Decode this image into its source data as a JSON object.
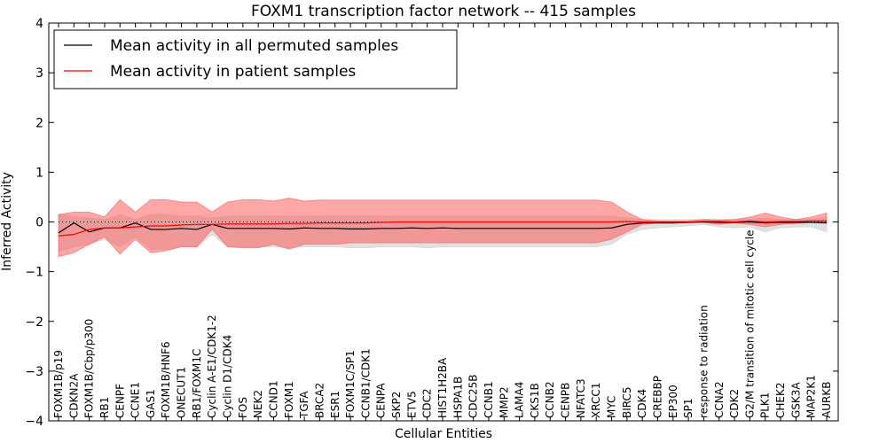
{
  "chart_data": {
    "type": "line",
    "title": "FOXM1 transcription factor network -- 415 samples",
    "xlabel": "Cellular Entities",
    "ylabel": "Inferred Activity",
    "ylim": [
      -4,
      4
    ],
    "yticks": [
      -4,
      -3,
      -2,
      -1,
      0,
      1,
      2,
      3,
      4
    ],
    "ytick_labels": [
      "−4",
      "−3",
      "−2",
      "−1",
      "0",
      "1",
      "2",
      "3",
      "4"
    ],
    "legend_position": "top-left",
    "categories": [
      "FOXM1B/p19",
      "CDKN2A",
      "FOXM1B/Cbp/p300",
      "RB1",
      "CENPF",
      "CCNE1",
      "GAS1",
      "FOXM1B/HNF6",
      "ONECUT1",
      "RB1/FOXM1C",
      "Cyclin A-E1/CDK1-2",
      "Cyclin D1/CDK4",
      "FOS",
      "NEK2",
      "CCND1",
      "FOXM1",
      "TGFA",
      "BRCA2",
      "ESR1",
      "FOXM1C/SP1",
      "CCNB1/CDK1",
      "CENPA",
      "SKP2",
      "ETV5",
      "CDC2",
      "HIST1H2BA",
      "HSPA1B",
      "CDC25B",
      "CCNB1",
      "MMP2",
      "LAMA4",
      "CKS1B",
      "CCNB2",
      "CENPB",
      "NFATC3",
      "XRCC1",
      "MYC",
      "BIRC5",
      "CDK4",
      "CREBBP",
      "EP300",
      "SP1",
      "response to radiation",
      "CCNA2",
      "CDK2",
      "G2/M transition of mitotic cell cycle",
      "PLK1",
      "CHEK2",
      "GSK3A",
      "MAP2K1",
      "AURKB"
    ],
    "series": [
      {
        "name": "Mean activity in all permuted samples",
        "color": "#000000",
        "values": [
          -0.22,
          -0.02,
          -0.2,
          -0.12,
          -0.12,
          -0.02,
          -0.15,
          -0.15,
          -0.13,
          -0.15,
          -0.05,
          -0.13,
          -0.13,
          -0.13,
          -0.13,
          -0.14,
          -0.12,
          -0.13,
          -0.13,
          -0.14,
          -0.14,
          -0.13,
          -0.13,
          -0.12,
          -0.13,
          -0.12,
          -0.13,
          -0.13,
          -0.13,
          -0.13,
          -0.13,
          -0.13,
          -0.13,
          -0.13,
          -0.13,
          -0.13,
          -0.12,
          -0.05,
          -0.02,
          -0.02,
          -0.02,
          -0.01,
          0.0,
          -0.01,
          -0.01,
          0.0,
          -0.02,
          -0.01,
          -0.01,
          -0.01,
          -0.02
        ],
        "band_lower": [
          -0.6,
          -0.5,
          -0.45,
          -0.35,
          -0.5,
          -0.3,
          -0.55,
          -0.55,
          -0.5,
          -0.5,
          -0.25,
          -0.5,
          -0.5,
          -0.5,
          -0.5,
          -0.52,
          -0.5,
          -0.5,
          -0.5,
          -0.52,
          -0.52,
          -0.5,
          -0.5,
          -0.5,
          -0.52,
          -0.5,
          -0.5,
          -0.5,
          -0.5,
          -0.5,
          -0.5,
          -0.5,
          -0.5,
          -0.5,
          -0.5,
          -0.5,
          -0.45,
          -0.25,
          -0.15,
          -0.12,
          -0.1,
          -0.08,
          -0.05,
          -0.1,
          -0.12,
          -0.1,
          -0.2,
          -0.12,
          -0.1,
          -0.1,
          -0.2
        ],
        "band_upper": [
          0.15,
          0.1,
          0.08,
          0.05,
          0.15,
          0.05,
          0.15,
          0.15,
          0.12,
          0.12,
          0.08,
          0.12,
          0.12,
          0.12,
          0.12,
          0.12,
          0.12,
          0.12,
          0.12,
          0.12,
          0.12,
          0.12,
          0.12,
          0.12,
          0.12,
          0.12,
          0.12,
          0.12,
          0.12,
          0.12,
          0.12,
          0.12,
          0.12,
          0.12,
          0.12,
          0.12,
          0.12,
          0.08,
          0.05,
          0.05,
          0.05,
          0.05,
          0.05,
          0.05,
          0.05,
          0.05,
          0.08,
          0.05,
          0.05,
          0.05,
          0.1
        ]
      },
      {
        "name": "Mean activity in patient samples",
        "color": "#ff0000",
        "values": [
          -0.28,
          -0.25,
          -0.15,
          -0.12,
          -0.12,
          -0.1,
          -0.08,
          -0.08,
          -0.06,
          -0.05,
          -0.05,
          -0.04,
          -0.04,
          -0.04,
          -0.04,
          -0.03,
          -0.03,
          -0.02,
          -0.02,
          -0.02,
          -0.02,
          -0.01,
          0.0,
          0.0,
          0.0,
          0.0,
          0.0,
          0.0,
          0.0,
          0.0,
          0.0,
          0.0,
          0.0,
          0.0,
          0.0,
          0.0,
          0.0,
          0.01,
          0.0,
          0.0,
          0.0,
          0.0,
          0.01,
          0.01,
          0.0,
          0.02,
          0.0,
          0.01,
          0.01,
          0.02,
          0.02
        ],
        "band_lower": [
          -0.7,
          -0.62,
          -0.45,
          -0.3,
          -0.65,
          -0.35,
          -0.62,
          -0.58,
          -0.5,
          -0.5,
          -0.15,
          -0.5,
          -0.52,
          -0.52,
          -0.45,
          -0.55,
          -0.45,
          -0.45,
          -0.45,
          -0.42,
          -0.42,
          -0.42,
          -0.42,
          -0.42,
          -0.42,
          -0.42,
          -0.42,
          -0.42,
          -0.42,
          -0.42,
          -0.42,
          -0.42,
          -0.42,
          -0.42,
          -0.42,
          -0.42,
          -0.35,
          -0.2,
          -0.05,
          -0.02,
          -0.01,
          -0.01,
          -0.01,
          -0.05,
          -0.02,
          -0.05,
          -0.1,
          -0.05,
          -0.03,
          -0.01,
          -0.01
        ],
        "band_upper": [
          0.15,
          0.2,
          0.2,
          0.1,
          0.45,
          0.2,
          0.45,
          0.45,
          0.4,
          0.4,
          0.2,
          0.4,
          0.45,
          0.45,
          0.42,
          0.48,
          0.42,
          0.44,
          0.44,
          0.44,
          0.44,
          0.44,
          0.44,
          0.44,
          0.44,
          0.44,
          0.44,
          0.44,
          0.44,
          0.44,
          0.44,
          0.44,
          0.44,
          0.44,
          0.44,
          0.44,
          0.4,
          0.2,
          0.05,
          0.02,
          0.02,
          0.02,
          0.05,
          0.04,
          0.05,
          0.1,
          0.18,
          0.1,
          0.05,
          0.1,
          0.18
        ]
      }
    ],
    "reference_line": 0,
    "band_colors": {
      "permuted": "#c8c8c8",
      "patient": "#ff5050"
    }
  }
}
